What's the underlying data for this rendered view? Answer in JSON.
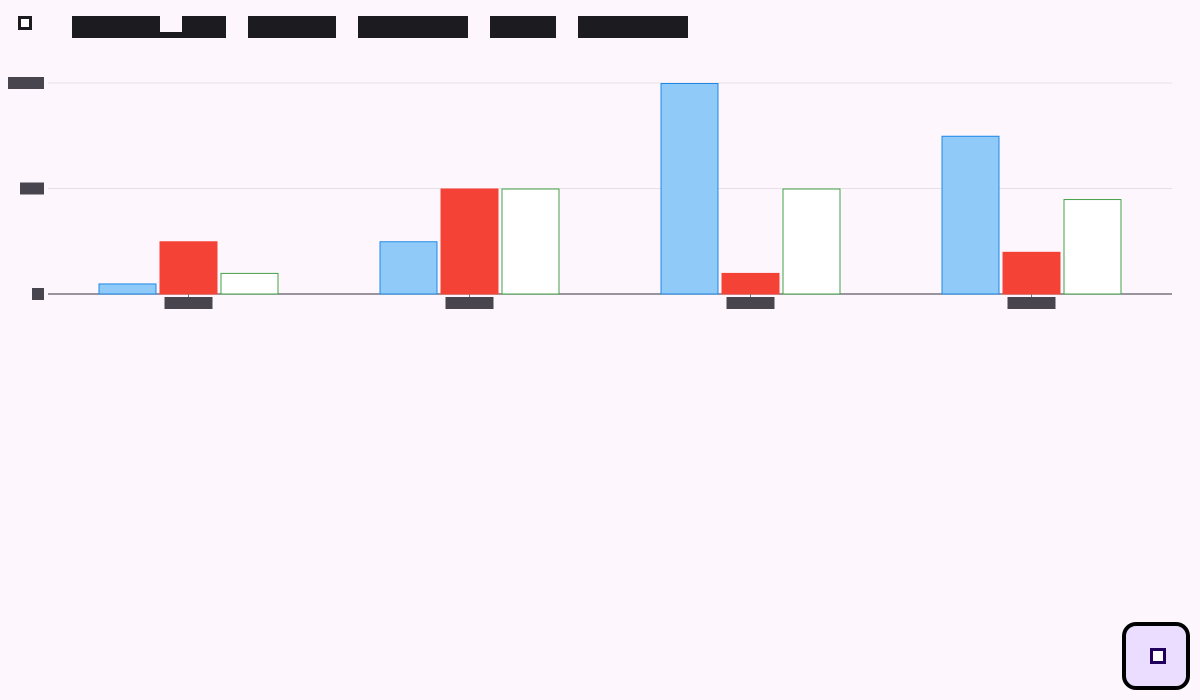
{
  "toolbar": {
    "select_icon": "checkbox-outline-icon",
    "tabs": [
      {
        "label": ""
      },
      {
        "label": ""
      },
      {
        "label": ""
      },
      {
        "label": ""
      },
      {
        "label": ""
      }
    ]
  },
  "chart_data": {
    "type": "bar",
    "title": "",
    "categories": [
      "",
      "",
      "",
      ""
    ],
    "y_ticks": [
      "",
      "",
      ""
    ],
    "ylim": [
      0,
      20
    ],
    "grid": true,
    "series": [
      {
        "color": "#90caf9",
        "border": "#1e88e5",
        "style": "filled",
        "values": [
          1,
          5,
          20,
          15
        ]
      },
      {
        "color": "#f44336",
        "border": "#f44336",
        "style": "filled",
        "values": [
          5,
          10,
          2,
          4
        ]
      },
      {
        "color": "#ffffff",
        "border": "#43a047",
        "style": "outline",
        "values": [
          2,
          10,
          10,
          9
        ]
      }
    ]
  },
  "fab": {
    "icon": "square-icon",
    "accent": "#eaddff"
  }
}
